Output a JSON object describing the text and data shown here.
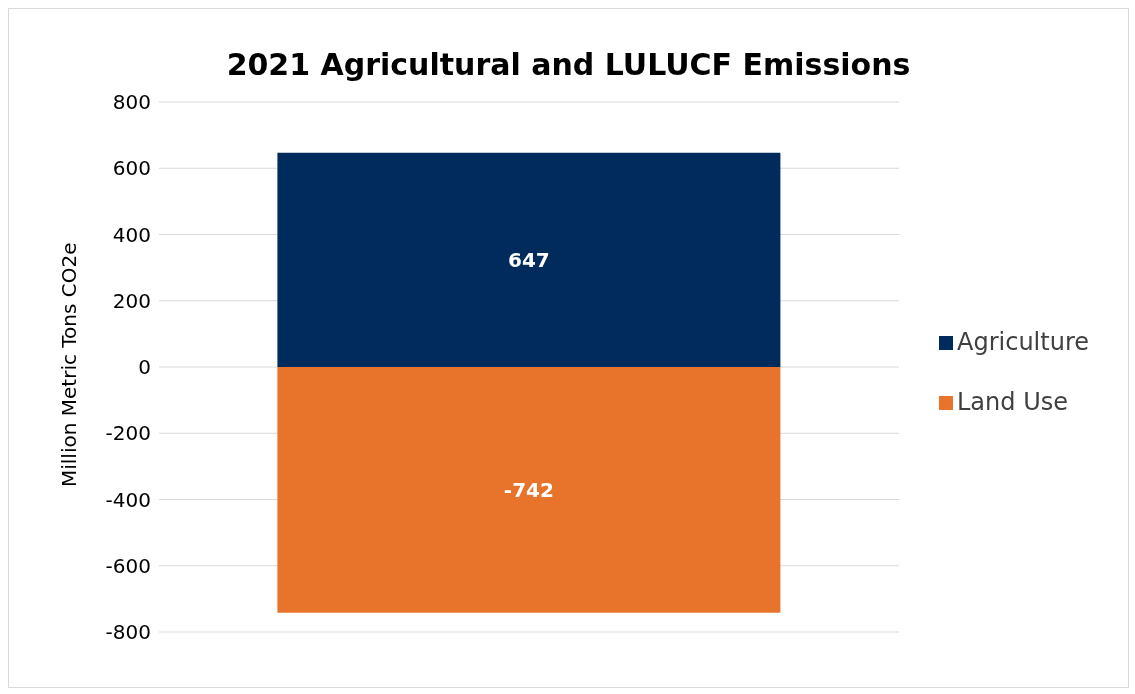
{
  "chart_data": {
    "type": "bar",
    "title": "2021 Agricultural and LULUCF Emissions",
    "ylabel": "Million Metric Tons CO2e",
    "categories": [
      null
    ],
    "stacked": true,
    "series": [
      {
        "name": "Agriculture",
        "color": "#002b5c",
        "values": [
          647
        ]
      },
      {
        "name": "Land Use",
        "color": "#e8742b",
        "values": [
          -742
        ]
      }
    ],
    "ylim": [
      -800,
      800
    ],
    "yticks": [
      -800,
      -600,
      -400,
      -200,
      0,
      200,
      400,
      600,
      800
    ],
    "grid": "y",
    "legend": "right",
    "data_labels": true,
    "tick_labels": "y"
  }
}
